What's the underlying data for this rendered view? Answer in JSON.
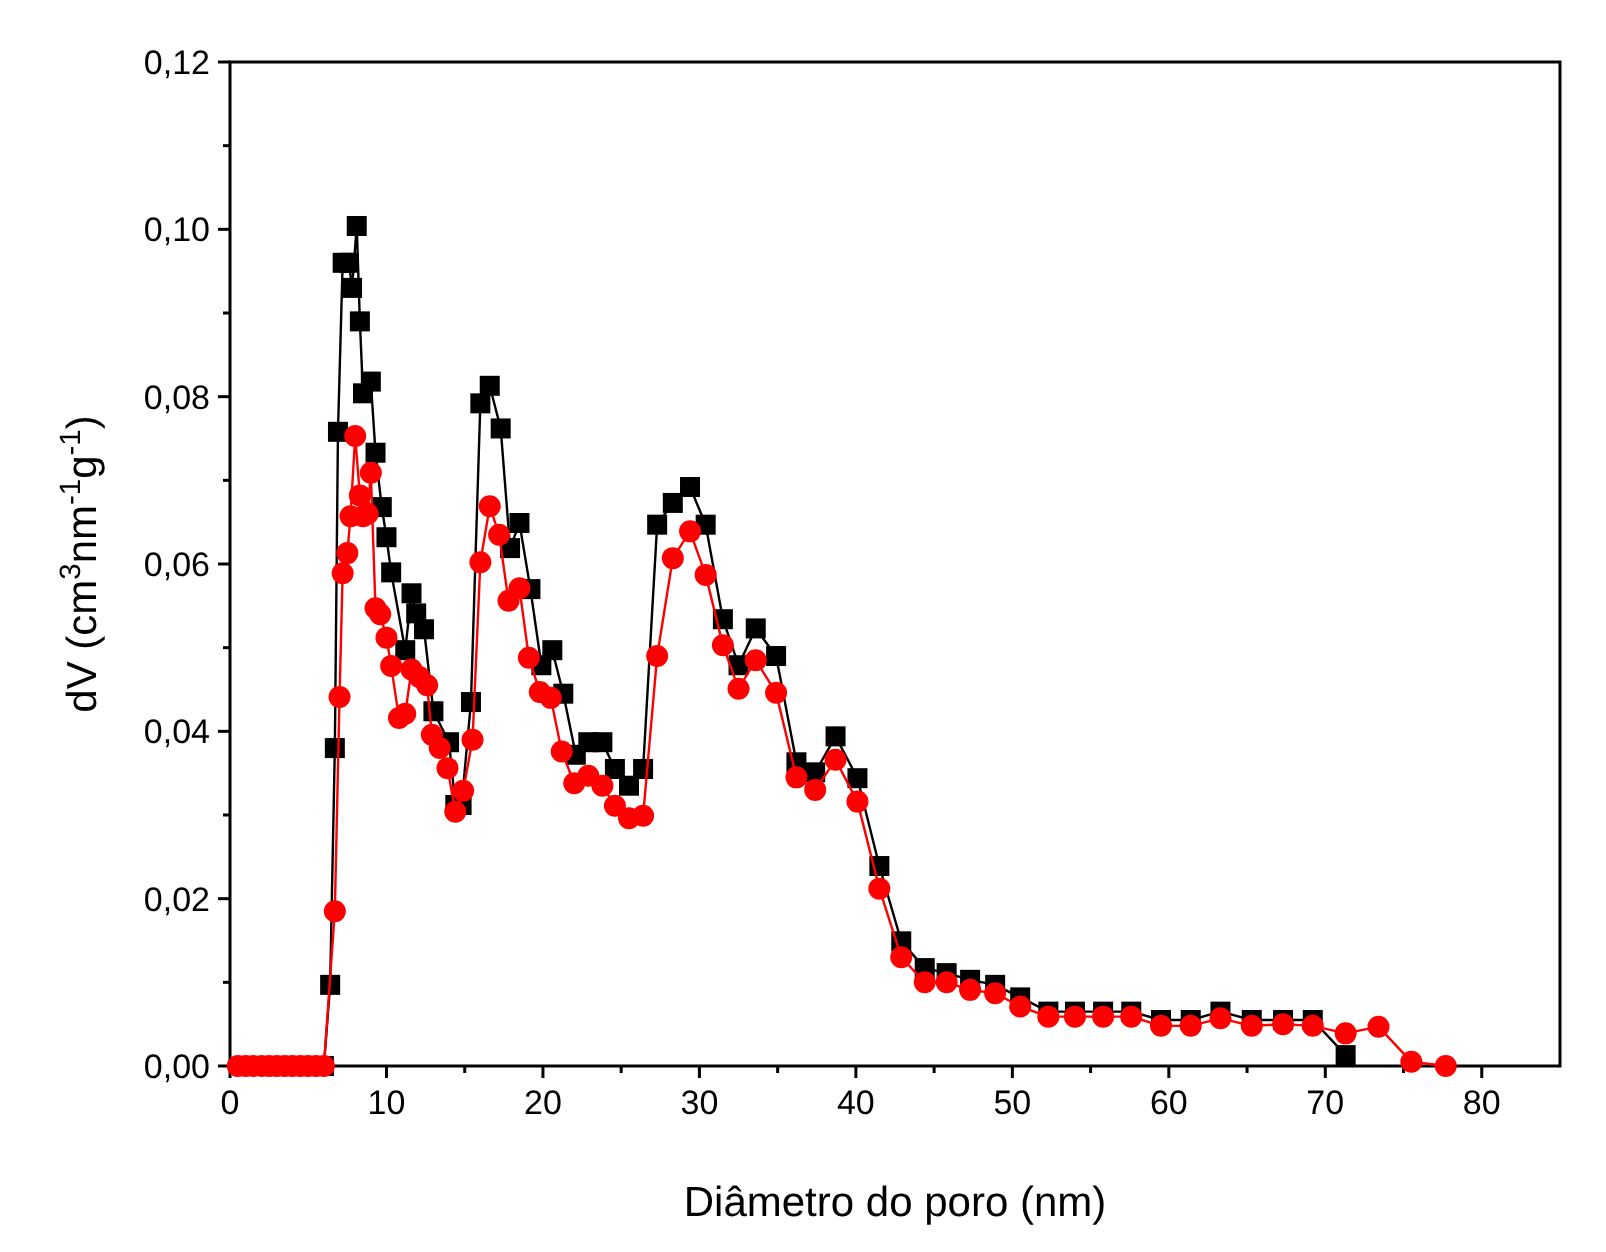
{
  "chart_data": {
    "type": "line",
    "xlabel": "Diâmetro do poro (nm)",
    "ylabel": "dV (cm$^{3}$nm$^{-1}$g$^{-1}$)",
    "xlim": [
      0,
      85
    ],
    "ylim": [
      0,
      0.12
    ],
    "xticks": [
      0,
      {
        "value": 5,
        "label": null
      },
      10,
      {
        "value": 15,
        "label": null
      },
      20,
      {
        "value": 25,
        "label": null
      },
      30,
      {
        "value": 35,
        "label": null
      },
      40,
      {
        "value": 45,
        "label": null
      },
      50,
      {
        "value": 55,
        "label": null
      },
      60,
      {
        "value": 65,
        "label": null
      },
      70,
      {
        "value": 75,
        "label": null
      },
      80
    ],
    "yticks": [
      {
        "value": 0,
        "label": "0,00"
      },
      {
        "value": 0.01,
        "label": null
      },
      {
        "value": 0.02,
        "label": "0,02"
      },
      {
        "value": 0.03,
        "label": null
      },
      {
        "value": 0.04,
        "label": "0,04"
      },
      {
        "value": 0.05,
        "label": null
      },
      {
        "value": 0.06,
        "label": "0,06"
      },
      {
        "value": 0.07,
        "label": null
      },
      {
        "value": 0.08,
        "label": "0,08"
      },
      {
        "value": 0.09,
        "label": null
      },
      {
        "value": 0.1,
        "label": "0,10"
      },
      {
        "value": 0.11,
        "label": null
      },
      {
        "value": 0.12,
        "label": "0,12"
      }
    ],
    "grid": false,
    "line_style": "solid",
    "series": [
      {
        "color": "#000000",
        "marker": "square",
        "x": [
          6,
          6.4,
          6.7,
          6.9,
          7.2,
          7.6,
          7.8,
          8.1,
          8.3,
          8.5,
          9.0,
          9.3,
          9.7,
          10.0,
          10.3,
          11.2,
          11.6,
          11.9,
          12.4,
          13.0,
          14.0,
          14.4,
          14.8,
          15.4,
          16.0,
          16.6,
          17.3,
          17.9,
          18.5,
          19.2,
          19.9,
          20.6,
          21.3,
          22.1,
          22.9,
          23.8,
          24.6,
          25.5,
          26.4,
          27.3,
          28.3,
          29.4,
          30.4,
          31.5,
          32.5,
          33.6,
          34.9,
          36.2,
          37.4,
          38.7,
          40.1,
          41.5,
          42.9,
          44.4,
          45.8,
          47.3,
          48.9,
          50.5,
          52.3,
          54.0,
          55.8,
          57.6,
          59.5,
          61.4,
          63.3,
          65.3,
          67.3,
          69.2,
          71.3
        ],
        "values": [
          0,
          0.0097,
          0.038,
          0.0758,
          0.096,
          0.096,
          0.093,
          0.1004,
          0.089,
          0.0804,
          0.0818,
          0.0733,
          0.0668,
          0.0632,
          0.059,
          0.0497,
          0.0565,
          0.0541,
          0.0522,
          0.0424,
          0.0387,
          0.0312,
          0.0312,
          0.0435,
          0.0792,
          0.0813,
          0.0762,
          0.0619,
          0.0649,
          0.057,
          0.0479,
          0.0497,
          0.0445,
          0.0372,
          0.0387,
          0.0387,
          0.0355,
          0.0335,
          0.0355,
          0.0647,
          0.0673,
          0.0692,
          0.0647,
          0.0534,
          0.0479,
          0.0523,
          0.049,
          0.0363,
          0.0351,
          0.0394,
          0.0344,
          0.0239,
          0.0149,
          0.0117,
          0.0111,
          0.0103,
          0.0097,
          0.0082,
          0.0065,
          0.0065,
          0.0065,
          0.0065,
          0.0055,
          0.0055,
          0.0065,
          0.0055,
          0.0055,
          0.0055,
          0.0013
        ]
      },
      {
        "color": "#ff0000",
        "marker": "circle",
        "x": [
          0.5,
          1,
          1.5,
          2,
          2.5,
          3,
          3.5,
          4,
          4.5,
          5,
          5.5,
          6,
          6.7,
          7.0,
          7.2,
          7.5,
          7.7,
          8.0,
          8.3,
          8.5,
          8.8,
          9.0,
          9.3,
          9.6,
          10.0,
          10.3,
          10.8,
          11.2,
          11.6,
          12.1,
          12.6,
          12.9,
          13.4,
          13.9,
          14.4,
          14.9,
          15.5,
          16.0,
          16.6,
          17.2,
          17.8,
          18.5,
          19.1,
          19.8,
          20.5,
          21.2,
          22.0,
          22.9,
          23.8,
          24.6,
          25.5,
          26.4,
          27.3,
          28.3,
          29.4,
          30.4,
          31.5,
          32.5,
          33.6,
          34.9,
          36.2,
          37.4,
          38.7,
          40.1,
          41.5,
          42.9,
          44.4,
          45.8,
          47.3,
          48.9,
          50.5,
          52.3,
          54.0,
          55.8,
          57.6,
          59.5,
          61.4,
          63.3,
          65.3,
          67.3,
          69.2,
          71.3,
          73.4,
          75.5,
          77.7
        ],
        "values": [
          0,
          0,
          0,
          0,
          0,
          0,
          0,
          0,
          0,
          0,
          0,
          0,
          0.0185,
          0.0441,
          0.0589,
          0.0613,
          0.0657,
          0.0753,
          0.0682,
          0.0657,
          0.066,
          0.0709,
          0.0547,
          0.054,
          0.0512,
          0.0478,
          0.0416,
          0.0421,
          0.0474,
          0.0465,
          0.0455,
          0.0396,
          0.038,
          0.0356,
          0.0304,
          0.0329,
          0.039,
          0.0602,
          0.0669,
          0.0635,
          0.0556,
          0.0571,
          0.0488,
          0.0447,
          0.044,
          0.0376,
          0.0338,
          0.0347,
          0.0335,
          0.0311,
          0.0296,
          0.0299,
          0.049,
          0.0607,
          0.0639,
          0.0587,
          0.0503,
          0.0451,
          0.0485,
          0.0446,
          0.0345,
          0.033,
          0.0366,
          0.0316,
          0.0212,
          0.013,
          0.01,
          0.01,
          0.0091,
          0.0087,
          0.0071,
          0.0059,
          0.0059,
          0.0059,
          0.0059,
          0.0048,
          0.0048,
          0.0057,
          0.0048,
          0.005,
          0.0048,
          0.0039,
          0.0047,
          0.0005,
          0
        ]
      }
    ]
  }
}
